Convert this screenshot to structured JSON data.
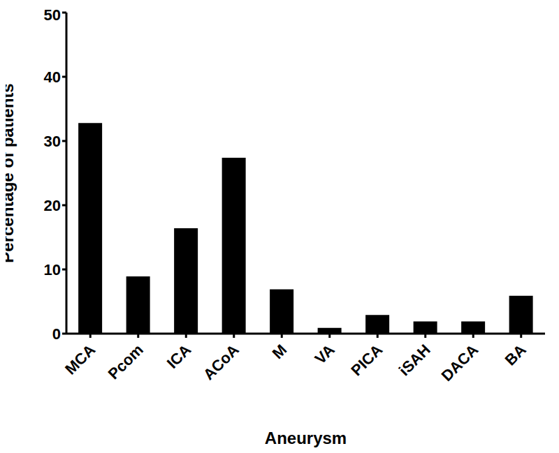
{
  "chart_data": {
    "type": "bar",
    "x_label": "Aneurysm",
    "y_label": "Percentage of patients",
    "categories": [
      "MCA",
      "Pcom",
      "ICA",
      "ACoA",
      "M",
      "VA",
      "PICA",
      "iSAH",
      "DACA",
      "BA"
    ],
    "values": [
      32.8,
      8.9,
      16.4,
      27.4,
      6.9,
      0.9,
      2.9,
      1.9,
      1.9,
      5.9
    ],
    "color": "#000000",
    "ylim": [
      0,
      50
    ],
    "yticks": [
      0,
      10,
      20,
      30,
      40,
      50
    ],
    "grid": false
  }
}
